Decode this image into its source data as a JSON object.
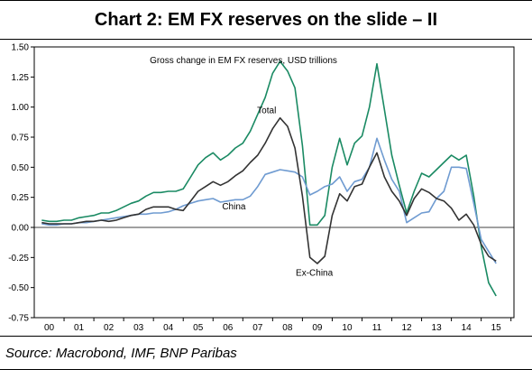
{
  "title": "Chart 2: EM FX reserves on the slide – II",
  "source": "Source: Macrobond, IMF, BNP Paribas",
  "chart_data": {
    "type": "line",
    "subtitle": "Gross change in EM FX reserves, USD trillions",
    "ylim": [
      -0.75,
      1.5
    ],
    "yticks": [
      "1.50",
      "1.25",
      "1.00",
      "0.75",
      "0.50",
      "0.25",
      "0.00",
      "-0.25",
      "-0.50",
      "-0.75"
    ],
    "ytick_values": [
      1.5,
      1.25,
      1.0,
      0.75,
      0.5,
      0.25,
      0.0,
      -0.25,
      -0.5,
      -0.75
    ],
    "xlim": [
      1999.5,
      2015.6
    ],
    "xticks": [
      "00",
      "01",
      "02",
      "03",
      "04",
      "05",
      "06",
      "07",
      "08",
      "09",
      "10",
      "11",
      "12",
      "13",
      "14",
      "15"
    ],
    "xtick_values": [
      2000,
      2001,
      2002,
      2003,
      2004,
      2005,
      2006,
      2007,
      2008,
      2009,
      2010,
      2011,
      2012,
      2013,
      2014,
      2015
    ],
    "grid": false,
    "series": [
      {
        "name": "Total",
        "color": "#1a8a63",
        "x": [
          1999.75,
          2000,
          2000.25,
          2000.5,
          2000.75,
          2001,
          2001.25,
          2001.5,
          2001.75,
          2002,
          2002.25,
          2002.5,
          2002.75,
          2003,
          2003.25,
          2003.5,
          2003.75,
          2004,
          2004.25,
          2004.5,
          2004.75,
          2005,
          2005.25,
          2005.5,
          2005.75,
          2006,
          2006.25,
          2006.5,
          2006.75,
          2007,
          2007.25,
          2007.5,
          2007.75,
          2008,
          2008.25,
          2008.5,
          2008.75,
          2009,
          2009.25,
          2009.5,
          2009.75,
          2010,
          2010.25,
          2010.5,
          2010.75,
          2011,
          2011.25,
          2011.5,
          2011.75,
          2012,
          2012.25,
          2012.5,
          2012.75,
          2013,
          2013.25,
          2013.5,
          2013.75,
          2014,
          2014.25,
          2014.5,
          2014.75,
          2015
        ],
        "y": [
          0.06,
          0.05,
          0.05,
          0.06,
          0.06,
          0.08,
          0.09,
          0.1,
          0.12,
          0.12,
          0.14,
          0.17,
          0.2,
          0.22,
          0.26,
          0.29,
          0.29,
          0.3,
          0.3,
          0.32,
          0.42,
          0.52,
          0.58,
          0.62,
          0.56,
          0.6,
          0.66,
          0.7,
          0.8,
          0.94,
          1.08,
          1.28,
          1.38,
          1.3,
          1.16,
          0.68,
          0.02,
          0.02,
          0.1,
          0.5,
          0.74,
          0.52,
          0.7,
          0.76,
          1.0,
          1.36,
          0.98,
          0.6,
          0.35,
          0.12,
          0.3,
          0.45,
          0.42,
          0.48,
          0.54,
          0.6,
          0.56,
          0.6,
          0.26,
          -0.16,
          -0.46,
          -0.57
        ]
      },
      {
        "name": "China",
        "color": "#6f9bd1",
        "x": [
          1999.75,
          2000,
          2000.25,
          2000.5,
          2000.75,
          2001,
          2001.25,
          2001.5,
          2001.75,
          2002,
          2002.25,
          2002.5,
          2002.75,
          2003,
          2003.25,
          2003.5,
          2003.75,
          2004,
          2004.25,
          2004.5,
          2004.75,
          2005,
          2005.25,
          2005.5,
          2005.75,
          2006,
          2006.25,
          2006.5,
          2006.75,
          2007,
          2007.25,
          2007.5,
          2007.75,
          2008,
          2008.25,
          2008.5,
          2008.75,
          2009,
          2009.25,
          2009.5,
          2009.75,
          2010,
          2010.25,
          2010.5,
          2010.75,
          2011,
          2011.25,
          2011.5,
          2011.75,
          2012,
          2012.25,
          2012.5,
          2012.75,
          2013,
          2013.25,
          2013.5,
          2013.75,
          2014,
          2014.25,
          2014.5,
          2014.75,
          2015
        ],
        "y": [
          0.03,
          0.02,
          0.02,
          0.03,
          0.03,
          0.04,
          0.04,
          0.05,
          0.06,
          0.07,
          0.08,
          0.09,
          0.1,
          0.11,
          0.11,
          0.12,
          0.12,
          0.13,
          0.15,
          0.18,
          0.2,
          0.22,
          0.23,
          0.24,
          0.21,
          0.22,
          0.23,
          0.23,
          0.26,
          0.34,
          0.44,
          0.46,
          0.48,
          0.47,
          0.46,
          0.42,
          0.27,
          0.3,
          0.34,
          0.36,
          0.42,
          0.3,
          0.38,
          0.4,
          0.5,
          0.74,
          0.56,
          0.4,
          0.3,
          0.04,
          0.08,
          0.12,
          0.13,
          0.24,
          0.3,
          0.5,
          0.5,
          0.49,
          0.2,
          -0.1,
          -0.2,
          -0.3
        ]
      },
      {
        "name": "Ex-China",
        "color": "#333333",
        "x": [
          1999.75,
          2000,
          2000.25,
          2000.5,
          2000.75,
          2001,
          2001.25,
          2001.5,
          2001.75,
          2002,
          2002.25,
          2002.5,
          2002.75,
          2003,
          2003.25,
          2003.5,
          2003.75,
          2004,
          2004.25,
          2004.5,
          2004.75,
          2005,
          2005.25,
          2005.5,
          2005.75,
          2006,
          2006.25,
          2006.5,
          2006.75,
          2007,
          2007.25,
          2007.5,
          2007.75,
          2008,
          2008.25,
          2008.5,
          2008.75,
          2009,
          2009.25,
          2009.5,
          2009.75,
          2010,
          2010.25,
          2010.5,
          2010.75,
          2011,
          2011.25,
          2011.5,
          2011.75,
          2012,
          2012.25,
          2012.5,
          2012.75,
          2013,
          2013.25,
          2013.5,
          2013.75,
          2014,
          2014.25,
          2014.5,
          2014.75,
          2015
        ],
        "y": [
          0.04,
          0.03,
          0.03,
          0.03,
          0.03,
          0.04,
          0.05,
          0.05,
          0.06,
          0.05,
          0.06,
          0.08,
          0.1,
          0.11,
          0.15,
          0.17,
          0.17,
          0.17,
          0.15,
          0.14,
          0.22,
          0.3,
          0.34,
          0.38,
          0.35,
          0.38,
          0.43,
          0.47,
          0.54,
          0.6,
          0.7,
          0.82,
          0.91,
          0.84,
          0.66,
          0.26,
          -0.25,
          -0.3,
          -0.24,
          0.1,
          0.28,
          0.22,
          0.34,
          0.36,
          0.5,
          0.62,
          0.42,
          0.3,
          0.22,
          0.1,
          0.24,
          0.32,
          0.29,
          0.24,
          0.22,
          0.16,
          0.06,
          0.11,
          0.02,
          -0.14,
          -0.24,
          -0.28
        ]
      }
    ],
    "annotations": [
      {
        "text": "Total",
        "x": 2007.3,
        "y": 0.95
      },
      {
        "text": "China",
        "x": 2006.2,
        "y": 0.15
      },
      {
        "text": "Ex-China",
        "x": 2008.9,
        "y": -0.4
      }
    ]
  }
}
